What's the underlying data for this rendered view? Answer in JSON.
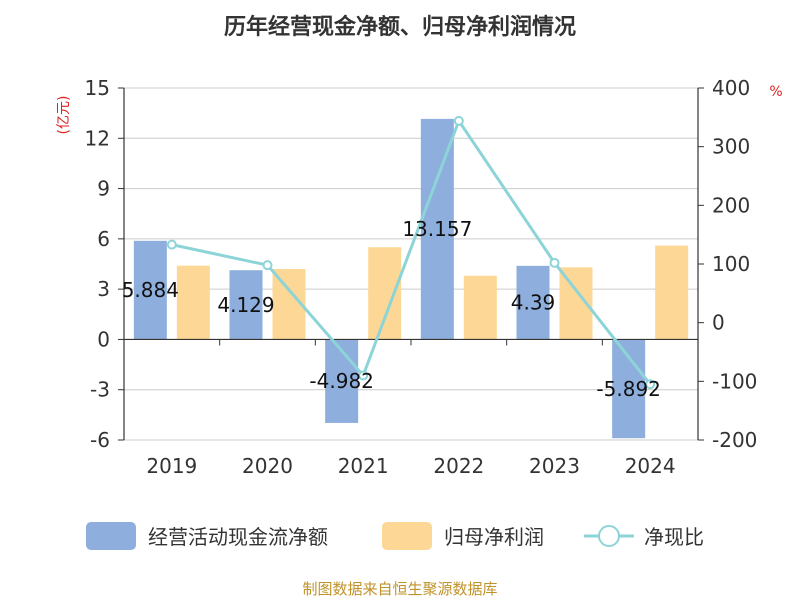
{
  "chart_data": {
    "type": "bar+line",
    "title": "历年经营现金净额、归母净利润情况",
    "categories": [
      "2019",
      "2020",
      "2021",
      "2022",
      "2023",
      "2024"
    ],
    "left_axis": {
      "label": "(亿元)",
      "range": [
        -6,
        15
      ],
      "ticks": [
        15,
        12,
        9,
        6,
        3,
        0,
        -3,
        -6
      ],
      "tick_labels": [
        "15",
        "12",
        "9",
        "6",
        "3",
        "0",
        "-3",
        "-6"
      ]
    },
    "right_axis": {
      "label": "%",
      "range": [
        -200,
        400
      ],
      "ticks": [
        400,
        300,
        200,
        100,
        0,
        -100,
        -200
      ],
      "tick_labels": [
        "400",
        "300",
        "200",
        "100",
        "0",
        "-100",
        "-200"
      ]
    },
    "series": [
      {
        "name": "经营活动现金流净额",
        "type": "bar",
        "axis": "left",
        "color": "#8eaedd",
        "values": [
          5.884,
          4.129,
          -4.982,
          13.157,
          4.39,
          -5.892
        ],
        "labels": [
          "5.884",
          "4.129",
          "-4.982",
          "13.157",
          "4.39",
          "-5.892"
        ]
      },
      {
        "name": "归母净利润",
        "type": "bar",
        "axis": "left",
        "color": "#fdd795",
        "values": [
          4.4,
          4.2,
          5.5,
          3.8,
          4.3,
          5.6
        ]
      },
      {
        "name": "净现比",
        "type": "line",
        "axis": "right",
        "color": "#8dd4d8",
        "values": [
          133,
          98,
          -90,
          344,
          102,
          -105
        ]
      }
    ],
    "grid": true,
    "legend_position": "bottom",
    "source": "制图数据来自恒生聚源数据库",
    "colors": {
      "title": "#333333",
      "axis_label": "#dd2222",
      "source": "#c0922a",
      "grid": "#cccccc"
    }
  }
}
